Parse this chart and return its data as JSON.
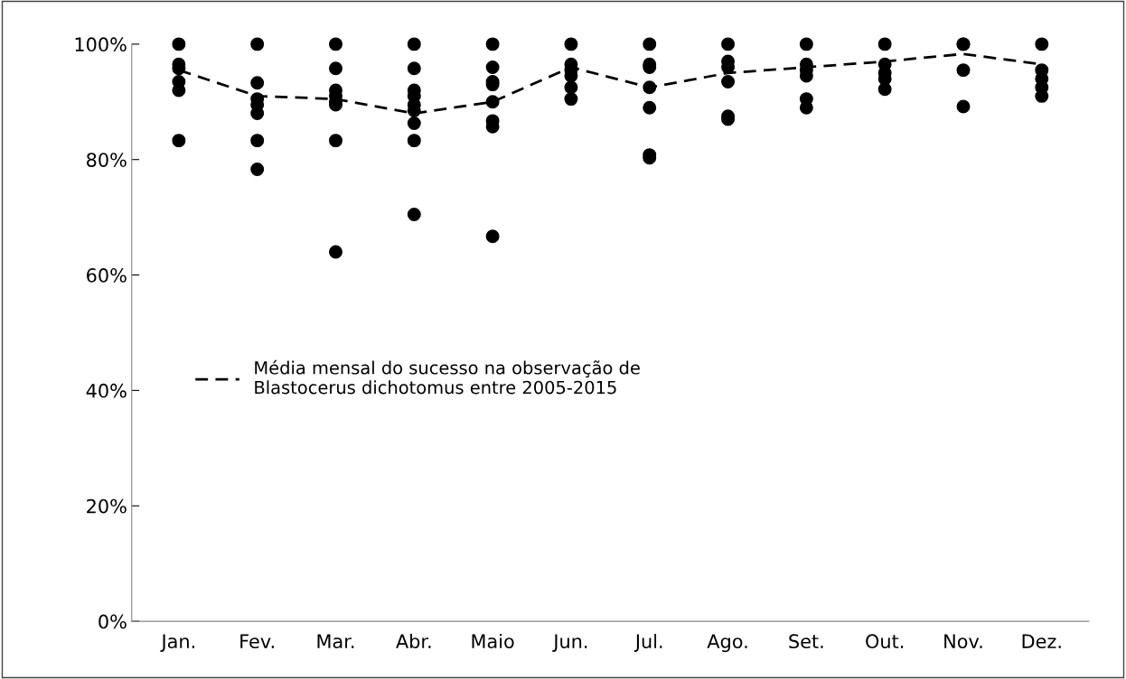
{
  "chart_data": {
    "type": "scatter",
    "categories": [
      "Jan.",
      "Fev.",
      "Mar.",
      "Abr.",
      "Maio",
      "Jun.",
      "Jul.",
      "Ago.",
      "Set.",
      "Out.",
      "Nov.",
      "Dez."
    ],
    "series": [
      {
        "color": "#000000",
        "marker": "circle",
        "x": [
          "Jan.",
          "Jan.",
          "Jan.",
          "Jan.",
          "Jan.",
          "Jan.",
          "Fev.",
          "Fev.",
          "Fev.",
          "Fev.",
          "Fev.",
          "Fev.",
          "Fev.",
          "Mar.",
          "Mar.",
          "Mar.",
          "Mar.",
          "Mar.",
          "Mar.",
          "Mar.",
          "Mar.",
          "Abr.",
          "Abr.",
          "Abr.",
          "Abr.",
          "Abr.",
          "Abr.",
          "Abr.",
          "Abr.",
          "Abr.",
          "Maio",
          "Maio",
          "Maio",
          "Maio",
          "Maio",
          "Maio",
          "Maio",
          "Maio",
          "Jun.",
          "Jun.",
          "Jun.",
          "Jun.",
          "Jun.",
          "Jun.",
          "Jul.",
          "Jul.",
          "Jul.",
          "Jul.",
          "Jul.",
          "Jul.",
          "Jul.",
          "Ago.",
          "Ago.",
          "Ago.",
          "Ago.",
          "Ago.",
          "Ago.",
          "Set.",
          "Set.",
          "Set.",
          "Set.",
          "Set.",
          "Set.",
          "Out.",
          "Out.",
          "Out.",
          "Out.",
          "Out.",
          "Nov.",
          "Nov.",
          "Nov.",
          "Nov.",
          "Dez.",
          "Dez.",
          "Dez.",
          "Dez.",
          "Dez."
        ],
        "values": [
          100,
          96.5,
          95.8,
          93.5,
          92,
          83.3,
          100,
          93.3,
          90.5,
          89.5,
          88,
          83.3,
          78.3,
          100,
          95.8,
          92,
          91,
          90,
          89.5,
          83.3,
          64,
          100,
          95.8,
          92,
          91,
          89.5,
          88.5,
          86.3,
          83.3,
          70.5,
          100,
          96,
          93.5,
          93,
          90,
          86.7,
          85.7,
          66.7,
          100,
          96.5,
          95.5,
          94.5,
          92.5,
          90.5,
          100,
          96.5,
          96,
          92.5,
          89,
          80.8,
          80.3,
          100,
          97,
          96,
          93.5,
          87.5,
          87,
          100,
          96.5,
          95.5,
          94.5,
          90.5,
          89,
          100,
          96.5,
          95,
          94,
          92.2,
          100,
          100,
          95.5,
          89.2,
          100,
          95.5,
          94,
          92.5,
          91
        ]
      },
      {
        "type": "line",
        "name": "Média mensal do sucesso na observação de\nBlastocerus dichotomus entre 2005-2015",
        "color": "#000000",
        "line_style": "dashed",
        "marker": "none",
        "values": [
          95.5,
          91,
          90.5,
          88,
          90,
          96,
          92.5,
          95,
          96,
          97,
          98.3,
          96.5
        ]
      }
    ],
    "ylim": [
      0,
      100
    ],
    "yticks": [
      {
        "value": 0,
        "label": "0%"
      },
      {
        "value": 20,
        "label": "20%"
      },
      {
        "value": 40,
        "label": "40%"
      },
      {
        "value": 60,
        "label": "60%"
      },
      {
        "value": 80,
        "label": "80%"
      },
      {
        "value": 100,
        "label": "100%"
      }
    ],
    "grid": false,
    "legend": "left"
  }
}
